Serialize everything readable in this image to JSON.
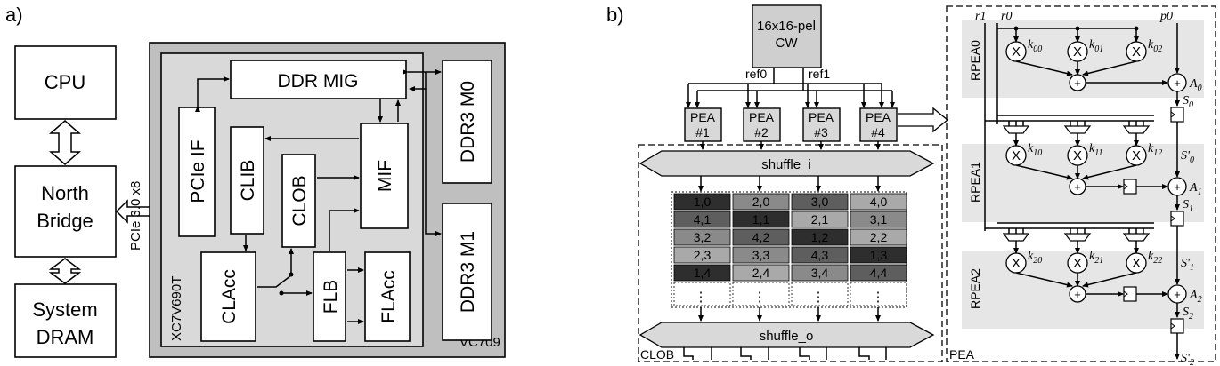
{
  "panel_a": {
    "label": "a)",
    "cpu": "CPU",
    "north_bridge": [
      "North",
      "Bridge"
    ],
    "system_dram": [
      "System",
      "DRAM"
    ],
    "pcie_link": "PCIe 3.0 x8",
    "board": "VC709",
    "fpga": "XC7V690T",
    "ddr_mig": "DDR MIG",
    "pcie_if": "PCIe IF",
    "clib": "CLIB",
    "clob": "CLOB",
    "mif": "MIF",
    "claccc": "CLAcc",
    "flb": "FLB",
    "flacc": "FLAcc",
    "ddr3_m0": "DDR3 M0",
    "ddr3_m1": "DDR3 M1"
  },
  "panel_b": {
    "label": "b)",
    "cw": [
      "16x16-pel",
      "CW"
    ],
    "ref0": "ref0",
    "ref1": "ref1",
    "peas": [
      [
        "PEA",
        "#1"
      ],
      [
        "PEA",
        "#2"
      ],
      [
        "PEA",
        "#3"
      ],
      [
        "PEA",
        "#4"
      ]
    ],
    "shuffle_i": "shuffle_i",
    "shuffle_o": "shuffle_o",
    "clob_label": "CLOB",
    "grid": [
      [
        "1,0",
        "2,0",
        "3,0",
        "4,0"
      ],
      [
        "4,1",
        "1,1",
        "2,1",
        "3,1"
      ],
      [
        "3,2",
        "4,2",
        "1,2",
        "2,2"
      ],
      [
        "2,3",
        "3,3",
        "4,3",
        "1,3"
      ],
      [
        "1,4",
        "2,4",
        "3,4",
        "4,4"
      ]
    ],
    "grid_colors": [
      [
        "#2e2e2e",
        "#8a8a8a",
        "#5e5e5e",
        "#a9a9a9"
      ],
      [
        "#5e5e5e",
        "#2e2e2e",
        "#a9a9a9",
        "#8a8a8a"
      ],
      [
        "#8a8a8a",
        "#5e5e5e",
        "#2e2e2e",
        "#a9a9a9"
      ],
      [
        "#a9a9a9",
        "#8a8a8a",
        "#5e5e5e",
        "#2e2e2e"
      ],
      [
        "#2e2e2e",
        "#a9a9a9",
        "#8a8a8a",
        "#5e5e5e"
      ]
    ],
    "ellipsis": "⋮"
  },
  "panel_pea": {
    "label": "PEA",
    "r1": "r1",
    "r0": "r0",
    "p0": "p0",
    "rows": [
      {
        "name": "RPEA0",
        "k": [
          "k00",
          "k01",
          "k02"
        ],
        "a": "A0",
        "s": "S0"
      },
      {
        "name": "RPEA1",
        "k": [
          "k10",
          "k11",
          "k12"
        ],
        "a": "A1",
        "s": "S1",
        "sp": "S'0"
      },
      {
        "name": "RPEA2",
        "k": [
          "k20",
          "k21",
          "k22"
        ],
        "a": "A2",
        "s": "S2",
        "sp": "S'1"
      }
    ],
    "s_prime_last": "S'2",
    "mult": "X",
    "plus": "+"
  }
}
